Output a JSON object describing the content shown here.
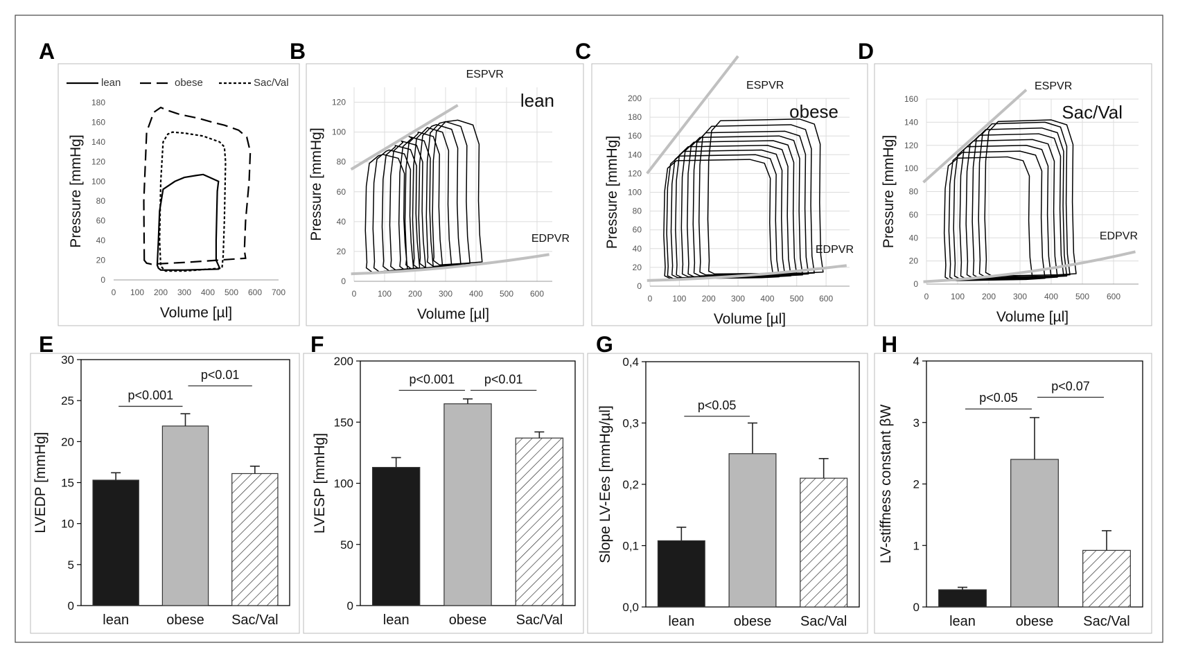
{
  "colors": {
    "black_bar": "#1b1b1b",
    "grey_bar": "#b9b9b9",
    "relation_line": "#c0c0c0",
    "loop": "#000000"
  },
  "chart_data": [
    {
      "panel": "A",
      "type": "line",
      "xlabel": "Volume [µl]",
      "ylabel": "Pressure [mmHg]",
      "xlim": [
        0,
        700
      ],
      "ylim": [
        0,
        180
      ],
      "xticks": [
        0,
        100,
        200,
        300,
        400,
        500,
        600,
        700
      ],
      "yticks": [
        0,
        20,
        40,
        60,
        80,
        100,
        120,
        140,
        160,
        180
      ],
      "grid": false,
      "legend": "top",
      "series": [
        {
          "name": "lean",
          "dash": "solid",
          "closed": true,
          "x": [
            185,
            190,
            195,
            210,
            260,
            300,
            350,
            380,
            445,
            440,
            435,
            435,
            450,
            445,
            300,
            200,
            190,
            185
          ],
          "y": [
            15,
            40,
            70,
            92,
            100,
            104,
            106,
            107,
            100,
            90,
            40,
            20,
            12,
            11,
            10,
            10,
            12,
            15
          ]
        },
        {
          "name": "obese",
          "dash": "dashed",
          "closed": true,
          "x": [
            130,
            128,
            140,
            170,
            200,
            230,
            280,
            360,
            420,
            470,
            530,
            565,
            580,
            575,
            560,
            555,
            560,
            320,
            160,
            140,
            130
          ],
          "y": [
            20,
            80,
            150,
            170,
            175,
            172,
            168,
            164,
            160,
            157,
            152,
            145,
            130,
            100,
            60,
            30,
            22,
            18,
            16,
            17,
            20
          ]
        },
        {
          "name": "Sac/Val",
          "dash": "dotted",
          "closed": true,
          "x": [
            195,
            200,
            210,
            230,
            250,
            300,
            380,
            450,
            470,
            475,
            470,
            465,
            460,
            300,
            220,
            200,
            195
          ],
          "y": [
            40,
            100,
            140,
            148,
            150,
            149,
            146,
            140,
            135,
            120,
            60,
            25,
            12,
            9,
            9,
            14,
            40
          ]
        }
      ]
    },
    {
      "panel": "B",
      "type": "line",
      "label": "lean",
      "xlabel": "Volume [µl]",
      "ylabel": "Pressure [mmHg]",
      "xlim": [
        0,
        650
      ],
      "ylim": [
        0,
        130
      ],
      "xticks": [
        0,
        100,
        200,
        300,
        400,
        500,
        600
      ],
      "yticks": [
        0,
        20,
        40,
        60,
        80,
        100,
        120
      ],
      "grid": true,
      "loops": {
        "vmin": [
          40,
          65,
          95,
          120,
          150,
          170,
          195,
          215,
          240,
          260
        ],
        "vmax": [
          175,
          195,
          215,
          235,
          260,
          290,
          320,
          350,
          380,
          420
        ],
        "pmax": [
          85,
          88,
          91,
          94,
          97,
          100,
          103,
          105,
          107,
          108
        ],
        "pmin": [
          6,
          6,
          7,
          7,
          7,
          8,
          8,
          9,
          10,
          11
        ]
      },
      "relations": [
        {
          "name": "ESPVR",
          "x": [
            -10,
            340
          ],
          "y": [
            75,
            118
          ]
        },
        {
          "name": "EDPVR",
          "x": [
            -10,
            640
          ],
          "y": [
            5,
            18
          ],
          "curve": true
        }
      ]
    },
    {
      "panel": "C",
      "type": "line",
      "label": "obese",
      "xlabel": "Volume [µl]",
      "ylabel": "Pressure [mmHg]",
      "xlim": [
        0,
        680
      ],
      "ylim": [
        0,
        200
      ],
      "xticks": [
        0,
        100,
        200,
        300,
        400,
        500,
        600
      ],
      "yticks": [
        0,
        20,
        40,
        60,
        80,
        100,
        120,
        140,
        160,
        180,
        200
      ],
      "grid": true,
      "loops": {
        "vmin": [
          50,
          60,
          75,
          90,
          110,
          130,
          150,
          170,
          200
        ],
        "vmax": [
          420,
          440,
          460,
          480,
          500,
          520,
          540,
          560,
          590
        ],
        "pmax": [
          135,
          140,
          145,
          150,
          155,
          160,
          165,
          172,
          178
        ],
        "pmin": [
          8,
          8,
          9,
          9,
          10,
          10,
          11,
          12,
          13
        ]
      },
      "relations": [
        {
          "name": "ESPVR",
          "x": [
            -10,
            300
          ],
          "y": [
            120,
            245
          ]
        },
        {
          "name": "EDPVR",
          "x": [
            -10,
            670
          ],
          "y": [
            6,
            22
          ],
          "curve": true
        }
      ]
    },
    {
      "panel": "D",
      "type": "line",
      "label": "Sac/Val",
      "xlabel": "Volume [µl]",
      "ylabel": "Pressure [mmHg]",
      "xlim": [
        0,
        680
      ],
      "ylim": [
        0,
        160
      ],
      "xticks": [
        0,
        100,
        200,
        300,
        400,
        500,
        600
      ],
      "yticks": [
        0,
        20,
        40,
        60,
        80,
        100,
        120,
        140,
        160
      ],
      "grid": true,
      "loops": {
        "vmin": [
          60,
          75,
          90,
          110,
          130,
          150,
          170,
          190
        ],
        "vmax": [
          340,
          380,
          400,
          420,
          440,
          450,
          460,
          480
        ],
        "pmax": [
          110,
          115,
          120,
          125,
          130,
          135,
          140,
          142
        ],
        "pmin": [
          3,
          3,
          4,
          4,
          5,
          5,
          6,
          7
        ]
      },
      "relations": [
        {
          "name": "ESPVR",
          "x": [
            -10,
            320
          ],
          "y": [
            88,
            168
          ]
        },
        {
          "name": "EDPVR",
          "x": [
            -10,
            670
          ],
          "y": [
            2,
            28
          ],
          "curve": true
        }
      ]
    },
    {
      "panel": "E",
      "type": "bar",
      "ylabel": "LVEDP [mmHg]",
      "categories": [
        "lean",
        "obese",
        "Sac/Val"
      ],
      "values": [
        15.3,
        21.9,
        16.1
      ],
      "errors": [
        0.9,
        1.5,
        0.9
      ],
      "ylim": [
        0,
        30
      ],
      "yticks": [
        "0",
        "5",
        "10",
        "15",
        "20",
        "25",
        "30"
      ],
      "brackets": [
        {
          "from": 0,
          "to": 1,
          "label": "p<0.001",
          "y": 24.3
        },
        {
          "from": 1,
          "to": 2,
          "label": "p<0.01",
          "y": 26.8
        }
      ]
    },
    {
      "panel": "F",
      "type": "bar",
      "ylabel": "LVESP [mmHg]",
      "categories": [
        "lean",
        "obese",
        "Sac/Val"
      ],
      "values": [
        113,
        165,
        137
      ],
      "errors": [
        8,
        4,
        5
      ],
      "ylim": [
        0,
        200
      ],
      "yticks": [
        "0",
        "50",
        "100",
        "150",
        "200"
      ],
      "brackets": [
        {
          "from": 0,
          "to": 1,
          "label": "p<0.001",
          "y": 176
        },
        {
          "from": 1,
          "to": 2,
          "label": "p<0.01",
          "y": 176
        }
      ]
    },
    {
      "panel": "G",
      "type": "bar",
      "ylabel": "Slope LV-Ees [mmHg/µl]",
      "categories": [
        "lean",
        "obese",
        "Sac/Val"
      ],
      "values": [
        0.108,
        0.25,
        0.21
      ],
      "errors": [
        0.022,
        0.05,
        0.032
      ],
      "ylim": [
        0,
        0.4
      ],
      "yticks": [
        "0,0",
        "0,1",
        "0,2",
        "0,3",
        "0,4"
      ],
      "brackets": [
        {
          "from": 0,
          "to": 1,
          "label": "p<0.05",
          "y": 0.311
        }
      ]
    },
    {
      "panel": "H",
      "type": "bar",
      "ylabel": "LV-stiffness constant βW",
      "categories": [
        "lean",
        "obese",
        "Sac/Val"
      ],
      "values": [
        0.28,
        2.4,
        0.92
      ],
      "errors": [
        0.04,
        0.68,
        0.32
      ],
      "ylim": [
        0,
        4
      ],
      "yticks": [
        "0",
        "1",
        "2",
        "3",
        "4"
      ],
      "brackets": [
        {
          "from": 0,
          "to": 1,
          "label": "p<0.05",
          "y": 3.22
        },
        {
          "from": 1,
          "to": 2,
          "label": "p<0.07",
          "y": 3.41
        }
      ]
    }
  ]
}
